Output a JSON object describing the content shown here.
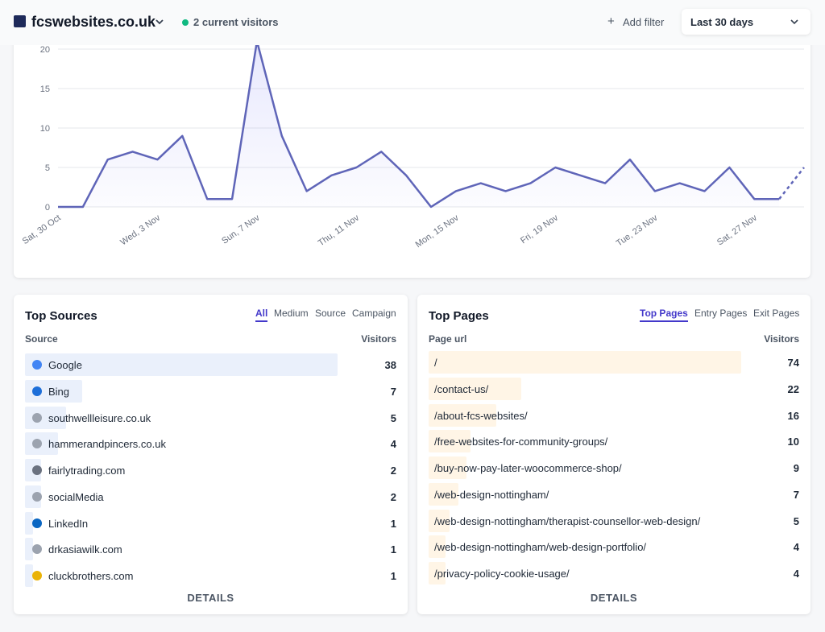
{
  "header": {
    "site": "fcswebsites.co.uk",
    "visitors": "2 current visitors",
    "add_filter": "Add filter",
    "period": "Last 30 days"
  },
  "chart_data": {
    "type": "line",
    "categories": [
      "Sat, 30 Oct",
      null,
      null,
      null,
      "Wed, 3 Nov",
      null,
      null,
      null,
      "Sun, 7 Nov",
      null,
      null,
      null,
      "Thu, 11 Nov",
      null,
      null,
      null,
      "Mon, 15 Nov",
      null,
      null,
      null,
      "Fri, 19 Nov",
      null,
      null,
      null,
      "Tue, 23 Nov",
      null,
      null,
      null,
      "Sat, 27 Nov",
      null,
      null
    ],
    "series": [
      {
        "color": "#5f65b8",
        "values": [
          0,
          0,
          6,
          7,
          6,
          9,
          1,
          1,
          21,
          9,
          2,
          4,
          5,
          7,
          4,
          0,
          2,
          3,
          2,
          3,
          5,
          4,
          3,
          6,
          2,
          3,
          2,
          5,
          1,
          1,
          5
        ]
      }
    ],
    "ylim": [
      0,
      22
    ],
    "yticks": [
      0,
      5,
      10,
      15,
      20
    ],
    "grid": true,
    "dashed_last": true
  },
  "top_sources": {
    "title": "Top Sources",
    "tabs": [
      "All",
      "Medium",
      "Source",
      "Campaign"
    ],
    "active_tab": 0,
    "columns": [
      "Source",
      "Visitors"
    ],
    "bar_color": "#eaf0fb",
    "rows": [
      {
        "label": "Google",
        "value": 38
      },
      {
        "label": "Bing",
        "value": 7
      },
      {
        "label": "southwellleisure.co.uk",
        "value": 5
      },
      {
        "label": "hammerandpincers.co.uk",
        "value": 4
      },
      {
        "label": "fairlytrading.com",
        "value": 2
      },
      {
        "label": "socialMedia",
        "value": 2
      },
      {
        "label": "LinkedIn",
        "value": 1
      },
      {
        "label": "drkasiawilk.com",
        "value": 1
      },
      {
        "label": "cluckbrothers.com",
        "value": 1
      }
    ],
    "details": "DETAILS"
  },
  "top_pages": {
    "title": "Top Pages",
    "tabs": [
      "Top Pages",
      "Entry Pages",
      "Exit Pages"
    ],
    "active_tab": 0,
    "columns": [
      "Page url",
      "Visitors"
    ],
    "bar_color": "#fff5e6",
    "rows": [
      {
        "label": "/",
        "value": 74
      },
      {
        "label": "/contact-us/",
        "value": 22
      },
      {
        "label": "/about-fcs-websites/",
        "value": 16
      },
      {
        "label": "/free-websites-for-community-groups/",
        "value": 10
      },
      {
        "label": "/buy-now-pay-later-woocommerce-shop/",
        "value": 9
      },
      {
        "label": "/web-design-nottingham/",
        "value": 7
      },
      {
        "label": "/web-design-nottingham/therapist-counsellor-web-design/",
        "value": 5
      },
      {
        "label": "/web-design-nottingham/web-design-portfolio/",
        "value": 4
      },
      {
        "label": "/privacy-policy-cookie-usage/",
        "value": 4
      }
    ],
    "details": "DETAILS"
  }
}
